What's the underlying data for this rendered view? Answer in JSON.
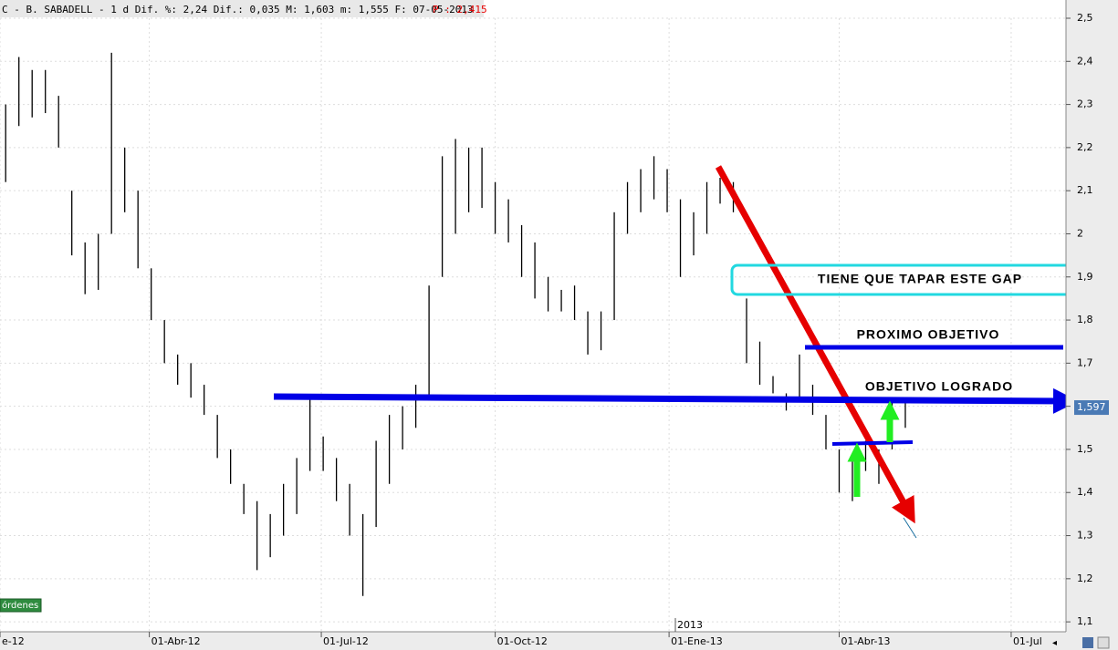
{
  "chart_data": {
    "type": "ohlc",
    "header": "C - B. SABADELL -  1 d Dif. %: 2,24 Dif.: 0,035 M: 1,603 m: 1,555 F: 07-05-2013",
    "header_price": "P : 2,415",
    "year_label": "2013",
    "button": "órdenes",
    "annotations": [
      "TIENE QUE TAPAR ESTE GAP",
      "PROXIMO OBJETIVO",
      "OBJETIVO LOGRADO"
    ],
    "last_price": {
      "value": 1.597,
      "label": "1,597"
    },
    "xlim": [
      "2012-01-13",
      "2013-07-30"
    ],
    "ylim": [
      1.077,
      2.5
    ],
    "yticks": [
      {
        "value": 1.1,
        "label": "1,1"
      },
      {
        "value": 1.2,
        "label": "1,2"
      },
      {
        "value": 1.3,
        "label": "1,3"
      },
      {
        "value": 1.4,
        "label": "1,4"
      },
      {
        "value": 1.5,
        "label": "1,5"
      },
      {
        "value": 1.6,
        "label": "1,6"
      },
      {
        "value": 1.7,
        "label": "1,7"
      },
      {
        "value": 1.8,
        "label": "1,8"
      },
      {
        "value": 1.9,
        "label": "1,9"
      },
      {
        "value": 2,
        "label": "2"
      },
      {
        "value": 2.1,
        "label": "2,1"
      },
      {
        "value": 2.2,
        "label": "2,2"
      },
      {
        "value": 2.3,
        "label": "2,3"
      },
      {
        "value": 2.4,
        "label": "2,4"
      },
      {
        "value": 2.5,
        "label": "2,5"
      }
    ],
    "xticks": [
      {
        "value": "2012-01-13",
        "label": "e-12"
      },
      {
        "value": "2012-04-01",
        "label": "01-Abr-12"
      },
      {
        "value": "2012-07-01",
        "label": "01-Jul-12"
      },
      {
        "value": "2012-10-01",
        "label": "01-Oct-12"
      },
      {
        "value": "2013-01-01",
        "label": "01-Ene-13"
      },
      {
        "value": "2013-04-01",
        "label": "01-Abr-13"
      },
      {
        "value": "2013-07-01",
        "label": "01-Jul"
      }
    ],
    "x": [
      "2012-01-16",
      "2012-01-23",
      "2012-01-30",
      "2012-02-06",
      "2012-02-13",
      "2012-02-20",
      "2012-02-27",
      "2012-03-05",
      "2012-03-12",
      "2012-03-19",
      "2012-03-26",
      "2012-04-02",
      "2012-04-09",
      "2012-04-16",
      "2012-04-23",
      "2012-04-30",
      "2012-05-07",
      "2012-05-14",
      "2012-05-21",
      "2012-05-28",
      "2012-06-04",
      "2012-06-11",
      "2012-06-18",
      "2012-06-25",
      "2012-07-02",
      "2012-07-09",
      "2012-07-16",
      "2012-07-23",
      "2012-07-30",
      "2012-08-06",
      "2012-08-13",
      "2012-08-20",
      "2012-08-27",
      "2012-09-03",
      "2012-09-10",
      "2012-09-17",
      "2012-09-24",
      "2012-10-01",
      "2012-10-08",
      "2012-10-15",
      "2012-10-22",
      "2012-10-29",
      "2012-11-05",
      "2012-11-12",
      "2012-11-19",
      "2012-11-26",
      "2012-12-03",
      "2012-12-10",
      "2012-12-17",
      "2012-12-24",
      "2012-12-31",
      "2013-01-07",
      "2013-01-14",
      "2013-01-21",
      "2013-01-28",
      "2013-02-04",
      "2013-02-11",
      "2013-02-18",
      "2013-02-25",
      "2013-03-04",
      "2013-03-11",
      "2013-03-18",
      "2013-03-25",
      "2013-04-01",
      "2013-04-08",
      "2013-04-15",
      "2013-04-22",
      "2013-04-29",
      "2013-05-06"
    ],
    "high": [
      2.3,
      2.41,
      2.38,
      2.38,
      2.32,
      2.1,
      1.98,
      2.0,
      2.42,
      2.2,
      2.1,
      1.92,
      1.8,
      1.72,
      1.7,
      1.65,
      1.58,
      1.5,
      1.42,
      1.38,
      1.35,
      1.42,
      1.48,
      1.62,
      1.53,
      1.48,
      1.42,
      1.35,
      1.52,
      1.58,
      1.6,
      1.65,
      1.88,
      2.18,
      2.22,
      2.2,
      2.2,
      2.12,
      2.08,
      2.02,
      1.98,
      1.9,
      1.87,
      1.88,
      1.82,
      1.82,
      2.05,
      2.12,
      2.15,
      2.18,
      2.15,
      2.08,
      2.05,
      2.12,
      2.13,
      2.12,
      1.85,
      1.75,
      1.67,
      1.63,
      1.72,
      1.65,
      1.58,
      1.5,
      1.48,
      1.52,
      1.5,
      1.62,
      1.62
    ],
    "low": [
      2.12,
      2.25,
      2.27,
      2.28,
      2.2,
      1.95,
      1.86,
      1.87,
      2.0,
      2.05,
      1.92,
      1.8,
      1.7,
      1.65,
      1.62,
      1.58,
      1.48,
      1.42,
      1.35,
      1.22,
      1.25,
      1.3,
      1.35,
      1.45,
      1.45,
      1.38,
      1.3,
      1.16,
      1.32,
      1.42,
      1.5,
      1.55,
      1.62,
      1.9,
      2.0,
      2.05,
      2.06,
      2.0,
      1.98,
      1.9,
      1.85,
      1.82,
      1.82,
      1.8,
      1.72,
      1.73,
      1.8,
      2.0,
      2.05,
      2.08,
      2.05,
      1.9,
      1.95,
      2.0,
      2.07,
      2.05,
      1.7,
      1.65,
      1.63,
      1.59,
      1.62,
      1.58,
      1.5,
      1.4,
      1.38,
      1.45,
      1.42,
      1.5,
      1.55
    ]
  }
}
